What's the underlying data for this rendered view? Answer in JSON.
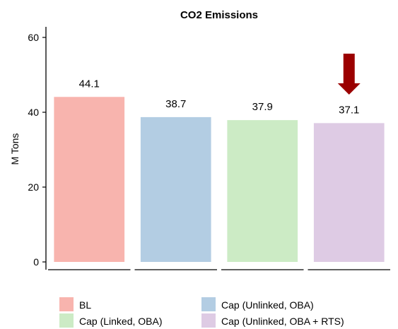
{
  "chart_data": {
    "type": "bar",
    "title": "CO2 Emissions",
    "xlabel": "",
    "ylabel": "M Tons",
    "ylim": [
      0,
      60
    ],
    "yticks": [
      0,
      20,
      40,
      60
    ],
    "grid": false,
    "legend_position": "bottom",
    "categories": [
      "BL",
      "Cap (Unlinked, OBA)",
      "Cap (Linked, OBA)",
      "Cap (Unlinked, OBA + RTS)"
    ],
    "values": [
      44.1,
      38.7,
      37.9,
      37.1
    ],
    "data_labels": [
      "44.1",
      "38.7",
      "37.9",
      "37.1"
    ],
    "colors": [
      "#f8b4ae",
      "#b3cde3",
      "#ccebc5",
      "#decbe4"
    ],
    "annotation": {
      "type": "arrow-down",
      "category_index": 3,
      "color": "#9b0000"
    }
  }
}
